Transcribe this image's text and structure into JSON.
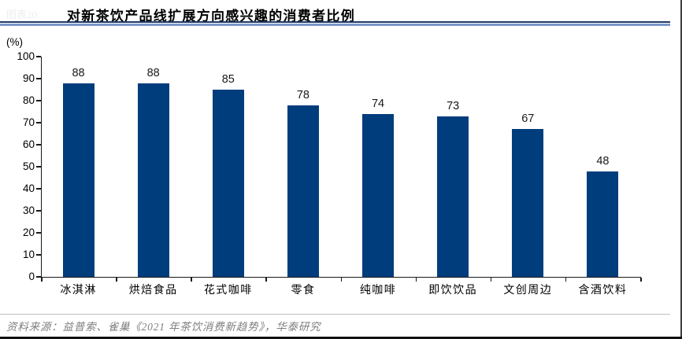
{
  "header": {
    "faint_prefix": "图表20:",
    "title": "对新茶饮产品线扩展方向感兴趣的消费者比例"
  },
  "chart_data": {
    "type": "bar",
    "title": "对新茶饮产品线扩展方向感兴趣的消费者比例",
    "unit_label": "(%)",
    "categories": [
      "冰淇淋",
      "烘焙食品",
      "花式咖啡",
      "零食",
      "纯咖啡",
      "即饮饮品",
      "文创周边",
      "含酒饮料"
    ],
    "values": [
      88,
      88,
      85,
      78,
      74,
      73,
      67,
      48
    ],
    "xlabel": "",
    "ylabel": "(%)",
    "ylim": [
      0,
      100
    ],
    "yticks": [
      0,
      10,
      20,
      30,
      40,
      50,
      60,
      70,
      80,
      90,
      100
    ],
    "grid": false,
    "legend": false,
    "data_labels": true,
    "bar_color": "#003d7c"
  },
  "footer": {
    "source": "资料来源：益普索、雀巢《2021 年茶饮消费新趋势》，华泰研究"
  }
}
